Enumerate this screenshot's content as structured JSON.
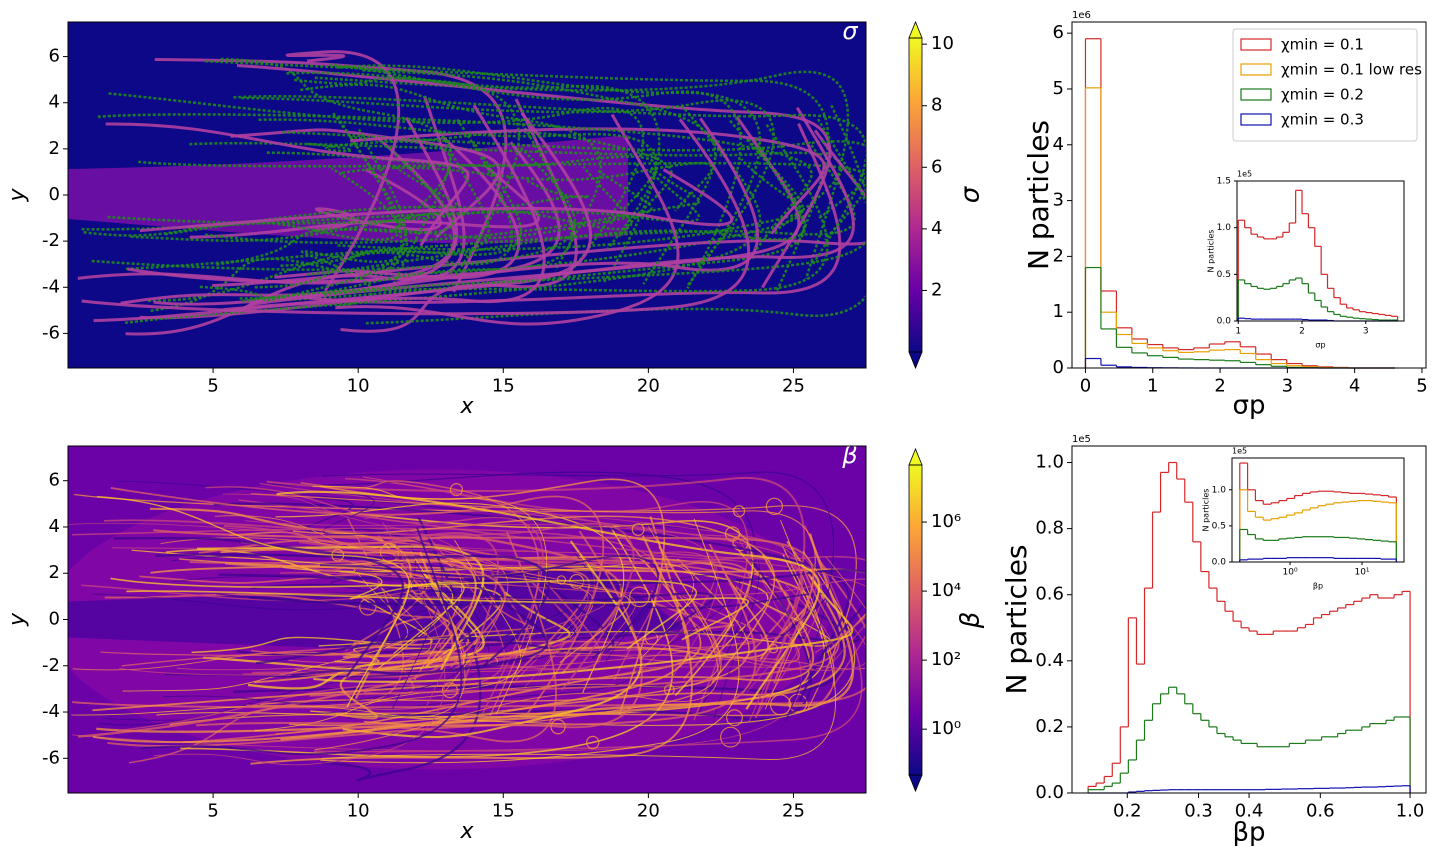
{
  "chart_data": [
    {
      "type": "image",
      "annotation": "σ",
      "xlabel": "x",
      "ylabel": "y",
      "xlim": [
        0,
        27.5
      ],
      "ylim": [
        -7.5,
        7.5
      ],
      "xticks": [
        5,
        10,
        15,
        20,
        25
      ],
      "yticks": [
        -6,
        -4,
        -2,
        0,
        2,
        4,
        6
      ],
      "colorbar": {
        "label": "σ",
        "clim": [
          0,
          10.2
        ],
        "ticks": [
          2,
          4,
          6,
          8,
          10
        ],
        "log": false,
        "colormap": "plasma",
        "extend": "both"
      }
    },
    {
      "type": "histogram",
      "xlabel": "σp",
      "ylabel": "N particles",
      "y_offset": "1e6",
      "xlim": [
        -0.2,
        5.06
      ],
      "ylim": [
        0,
        6.2
      ],
      "xticks": [
        0,
        1,
        2,
        3,
        4,
        5
      ],
      "yticks": [
        0,
        1,
        2,
        3,
        4,
        5,
        6
      ],
      "legend": "upper right",
      "bins": [
        0,
        0.23,
        0.46,
        0.69,
        0.92,
        1.15,
        1.38,
        1.61,
        1.84,
        2.07,
        2.3,
        2.53,
        2.76,
        2.99,
        3.22,
        3.45,
        3.68,
        3.91,
        4.14,
        4.37,
        4.6
      ],
      "series": [
        {
          "name": "χmin = 0.1",
          "color": "#d62728",
          "values": [
            5.9,
            1.38,
            0.72,
            0.52,
            0.42,
            0.36,
            0.33,
            0.36,
            0.43,
            0.47,
            0.38,
            0.25,
            0.15,
            0.08,
            0.04,
            0.02,
            0.01,
            0,
            0,
            0
          ]
        },
        {
          "name": "χmin = 0.1 low res",
          "color": "#e8a000",
          "values": [
            5.02,
            1.0,
            0.6,
            0.44,
            0.36,
            0.31,
            0.28,
            0.29,
            0.32,
            0.33,
            0.26,
            0.15,
            0.08,
            0.04,
            0.02,
            0.01,
            0.005,
            0,
            0,
            0
          ]
        },
        {
          "name": "χmin = 0.2",
          "color": "#1a7a1a",
          "values": [
            1.8,
            0.7,
            0.37,
            0.27,
            0.22,
            0.19,
            0.16,
            0.15,
            0.14,
            0.13,
            0.1,
            0.06,
            0.03,
            0.01,
            0.005,
            0,
            0,
            0,
            0,
            0
          ]
        },
        {
          "name": "χmin = 0.3",
          "color": "#1010b0",
          "values": [
            0.17,
            0.05,
            0.02,
            0.01,
            0.005,
            0.003,
            0.001,
            0,
            0,
            0,
            0,
            0,
            0,
            0,
            0,
            0,
            0,
            0,
            0,
            0
          ]
        }
      ]
    },
    {
      "type": "histogram",
      "xlabel": "σp",
      "ylabel": "N particles",
      "y_offset": "1e5",
      "xlim": [
        0.98,
        3.6
      ],
      "ylim": [
        0,
        1.5
      ],
      "xticks": [
        1,
        2,
        3
      ],
      "yticks": [
        {
          "value": 0,
          "label": "0.0"
        },
        0.5,
        {
          "value": 1,
          "label": "1.0"
        },
        1.5
      ],
      "bins": [
        1.0,
        1.1,
        1.2,
        1.3,
        1.4,
        1.5,
        1.6,
        1.7,
        1.8,
        1.9,
        2.0,
        2.1,
        2.2,
        2.3,
        2.4,
        2.5,
        2.6,
        2.7,
        2.8,
        2.9,
        3.0,
        3.1,
        3.2,
        3.3,
        3.4,
        3.5
      ],
      "series": [
        {
          "color": "#d62728",
          "values": [
            1.08,
            1.0,
            0.93,
            0.9,
            0.88,
            0.88,
            0.9,
            0.95,
            1.05,
            1.4,
            1.15,
            1.0,
            0.8,
            0.5,
            0.35,
            0.25,
            0.18,
            0.14,
            0.12,
            0.1,
            0.09,
            0.08,
            0.07,
            0.06,
            0.05
          ]
        },
        {
          "color": "#1a7a1a",
          "values": [
            0.44,
            0.4,
            0.37,
            0.35,
            0.34,
            0.35,
            0.37,
            0.4,
            0.44,
            0.46,
            0.4,
            0.3,
            0.22,
            0.15,
            0.1,
            0.07,
            0.05,
            0.04,
            0.03,
            0.025,
            0.02,
            0.015,
            0.01,
            0.01,
            0.01
          ]
        },
        {
          "color": "#1010b0",
          "values": [
            0.03,
            0.025,
            0.02,
            0.02,
            0.02,
            0.02,
            0.02,
            0.02,
            0.02,
            0.02,
            0.015,
            0.01,
            0.01,
            0.01,
            0.005,
            0,
            0,
            0,
            0,
            0,
            0,
            0,
            0,
            0,
            0
          ]
        }
      ]
    },
    {
      "type": "image",
      "annotation": "β",
      "xlabel": "x",
      "ylabel": "y",
      "xlim": [
        0,
        27.5
      ],
      "ylim": [
        -7.5,
        7.5
      ],
      "xticks": [
        5,
        10,
        15,
        20,
        25
      ],
      "yticks": [
        -6,
        -4,
        -2,
        0,
        2,
        4,
        6
      ],
      "colorbar": {
        "label": "β",
        "clim": [
          0.047,
          45000000
        ],
        "log": true,
        "colormap": "plasma",
        "extend": "both",
        "ticks": [
          {
            "value": 1,
            "label": "10⁰"
          },
          {
            "value": 100,
            "label": "10²"
          },
          {
            "value": 10000,
            "label": "10⁴"
          },
          {
            "value": 1000000,
            "label": "10⁶"
          }
        ]
      }
    },
    {
      "type": "histogram",
      "xlabel": "βp",
      "ylabel": "N particles",
      "y_offset": "1e5",
      "xscale": "log",
      "xlim": [
        0.146,
        1.095
      ],
      "ylim": [
        0,
        1.05
      ],
      "xticks": [
        0.2,
        0.3,
        0.4,
        0.6,
        {
          "value": 1,
          "label": "1.0"
        }
      ],
      "yticks": [
        {
          "value": 0,
          "label": "0.0"
        },
        0.2,
        0.4,
        0.6,
        0.8,
        {
          "value": 1,
          "label": "1.0"
        }
      ],
      "bins": [
        0.16,
        0.1675,
        0.1754,
        0.1836,
        0.1922,
        0.2012,
        0.2107,
        0.2206,
        0.2309,
        0.2417,
        0.2531,
        0.265,
        0.2774,
        0.2904,
        0.304,
        0.3183,
        0.3332,
        0.3488,
        0.3652,
        0.3823,
        0.4,
        0.4188,
        0.4384,
        0.459,
        0.4805,
        0.5031,
        0.5267,
        0.5514,
        0.5772,
        0.6043,
        0.6327,
        0.6623,
        0.6934,
        0.7259,
        0.76,
        0.7956,
        0.833,
        0.872,
        0.9129,
        0.9557,
        1.0
      ],
      "series": [
        {
          "color": "#d62728",
          "values": [
            0.02,
            0.03,
            0.05,
            0.09,
            0.2,
            0.53,
            0.39,
            0.62,
            0.85,
            0.97,
            1.0,
            0.95,
            0.88,
            0.76,
            0.67,
            0.62,
            0.58,
            0.55,
            0.52,
            0.5,
            0.49,
            0.48,
            0.48,
            0.49,
            0.49,
            0.49,
            0.5,
            0.51,
            0.53,
            0.54,
            0.55,
            0.56,
            0.57,
            0.58,
            0.59,
            0.6,
            0.59,
            0.59,
            0.6,
            0.61
          ]
        },
        {
          "color": "#1a7a1a",
          "values": [
            0.01,
            0.01,
            0.02,
            0.03,
            0.06,
            0.1,
            0.16,
            0.22,
            0.27,
            0.3,
            0.32,
            0.3,
            0.27,
            0.24,
            0.22,
            0.2,
            0.18,
            0.17,
            0.16,
            0.15,
            0.15,
            0.14,
            0.14,
            0.14,
            0.14,
            0.15,
            0.15,
            0.16,
            0.16,
            0.17,
            0.17,
            0.18,
            0.19,
            0.19,
            0.2,
            0.21,
            0.21,
            0.22,
            0.23,
            0.23
          ]
        },
        {
          "color": "#1010b0",
          "values": [
            0,
            0,
            0,
            0,
            0,
            0.003,
            0.005,
            0.007,
            0.008,
            0.009,
            0.01,
            0.01,
            0.01,
            0.01,
            0.01,
            0.01,
            0.01,
            0.01,
            0.01,
            0.01,
            0.01,
            0.01,
            0.011,
            0.011,
            0.012,
            0.012,
            0.013,
            0.013,
            0.014,
            0.014,
            0.015,
            0.015,
            0.016,
            0.017,
            0.018,
            0.018,
            0.019,
            0.02,
            0.021,
            0.022
          ]
        }
      ]
    },
    {
      "type": "histogram",
      "xlabel": "βp",
      "ylabel": "N particles",
      "y_offset": "1e5",
      "xscale": "log",
      "xlim": [
        0.156,
        38.3
      ],
      "ylim": [
        0,
        1.44
      ],
      "xticks": [
        {
          "value": 1,
          "label": "10⁰"
        },
        {
          "value": 10,
          "label": "10¹"
        }
      ],
      "yticks": [
        {
          "value": 0,
          "label": "0.0"
        },
        0.5,
        {
          "value": 1,
          "label": "1.0"
        }
      ],
      "bins": [
        0.2,
        0.257,
        0.33,
        0.424,
        0.545,
        0.7,
        0.899,
        1.155,
        1.484,
        1.907,
        2.449,
        3.147,
        4.043,
        5.194,
        6.673,
        8.573,
        11.01,
        14.15,
        18.18,
        23.35,
        30.0
      ],
      "series": [
        {
          "color": "#d62728",
          "values": [
            1.37,
            1.0,
            0.85,
            0.8,
            0.82,
            0.85,
            0.88,
            0.92,
            0.95,
            0.97,
            0.98,
            0.98,
            0.97,
            0.96,
            0.95,
            0.95,
            0.94,
            0.93,
            0.92,
            0.9
          ]
        },
        {
          "color": "#e8a000",
          "values": [
            1.0,
            0.7,
            0.62,
            0.58,
            0.6,
            0.62,
            0.65,
            0.68,
            0.72,
            0.75,
            0.78,
            0.8,
            0.82,
            0.83,
            0.84,
            0.85,
            0.85,
            0.84,
            0.83,
            0.82
          ]
        },
        {
          "color": "#1a7a1a",
          "values": [
            0.45,
            0.38,
            0.32,
            0.3,
            0.3,
            0.32,
            0.33,
            0.34,
            0.35,
            0.35,
            0.35,
            0.35,
            0.34,
            0.34,
            0.33,
            0.32,
            0.31,
            0.3,
            0.29,
            0.28
          ]
        },
        {
          "color": "#1010b0",
          "values": [
            0.03,
            0.04,
            0.04,
            0.05,
            0.05,
            0.05,
            0.06,
            0.06,
            0.06,
            0.06,
            0.06,
            0.06,
            0.05,
            0.05,
            0.05,
            0.05,
            0.05,
            0.05,
            0.04,
            0.04
          ]
        }
      ]
    }
  ]
}
